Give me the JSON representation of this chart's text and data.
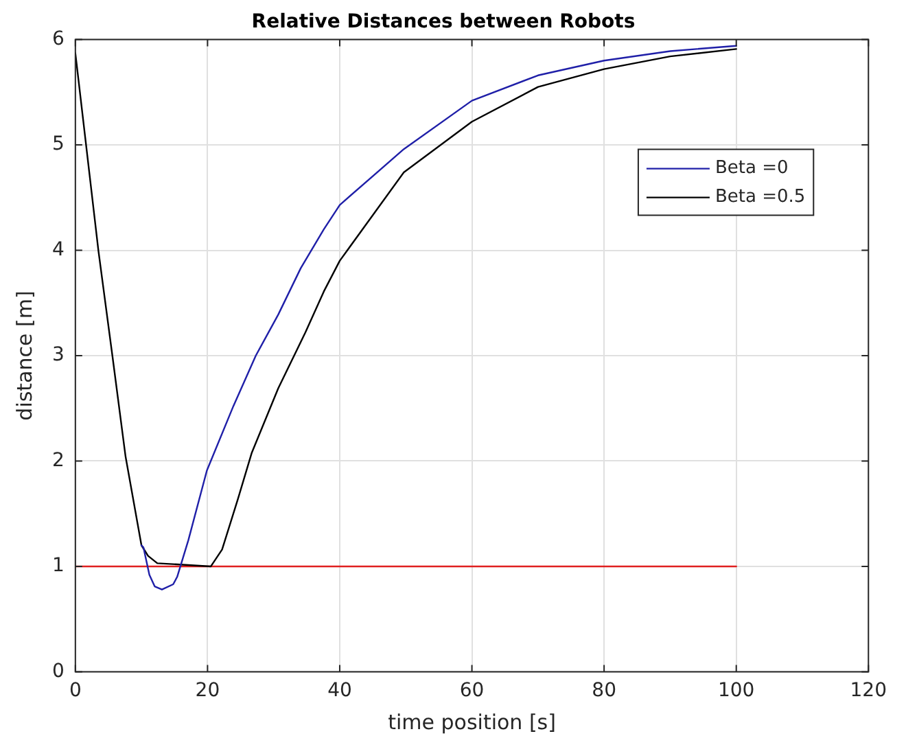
{
  "chart_data": {
    "type": "line",
    "title": "Relative Distances between Robots",
    "xlabel": "time position [s]",
    "ylabel": "distance [m]",
    "xlim": [
      0,
      120
    ],
    "xticks": [
      0,
      20,
      40,
      60,
      80,
      100,
      120
    ],
    "ylim": [
      0,
      6
    ],
    "yticks": [
      0,
      1,
      2,
      3,
      4,
      5,
      6
    ],
    "grid": true,
    "legend": "top right",
    "marker": "none",
    "line_style": "solid",
    "series": [
      {
        "name": "Beta =0",
        "color": "#1f1fa8",
        "x": [
          10.0,
          10.3,
          11.2,
          12.0,
          13.1,
          14.8,
          15.4,
          17.1,
          19.9,
          23.9,
          27.3,
          30.7,
          34.1,
          37.6,
          40,
          49.7,
          60,
          70,
          80,
          90,
          100
        ],
        "values": [
          1.2,
          1.18,
          0.92,
          0.81,
          0.78,
          0.83,
          0.9,
          1.25,
          1.91,
          2.52,
          3.0,
          3.39,
          3.83,
          4.2,
          4.43,
          4.96,
          5.42,
          5.66,
          5.8,
          5.89,
          5.94
        ]
      },
      {
        "name": "Beta =0.5",
        "color": "#000000",
        "x": [
          0,
          3.5,
          5.6,
          7.6,
          10.0,
          11.0,
          12.4,
          20.5,
          22.2,
          24.6,
          26.7,
          30.7,
          34.8,
          37.6,
          40,
          49.7,
          60,
          70,
          80,
          90,
          100
        ],
        "values": [
          5.87,
          3.99,
          3.0,
          2.04,
          1.2,
          1.1,
          1.03,
          1.0,
          1.16,
          1.64,
          2.08,
          2.69,
          3.22,
          3.61,
          3.9,
          4.74,
          5.22,
          5.55,
          5.72,
          5.84,
          5.91
        ]
      },
      {
        "color": "#e02020",
        "x": [
          0,
          100
        ],
        "values": [
          1,
          1
        ]
      }
    ]
  }
}
